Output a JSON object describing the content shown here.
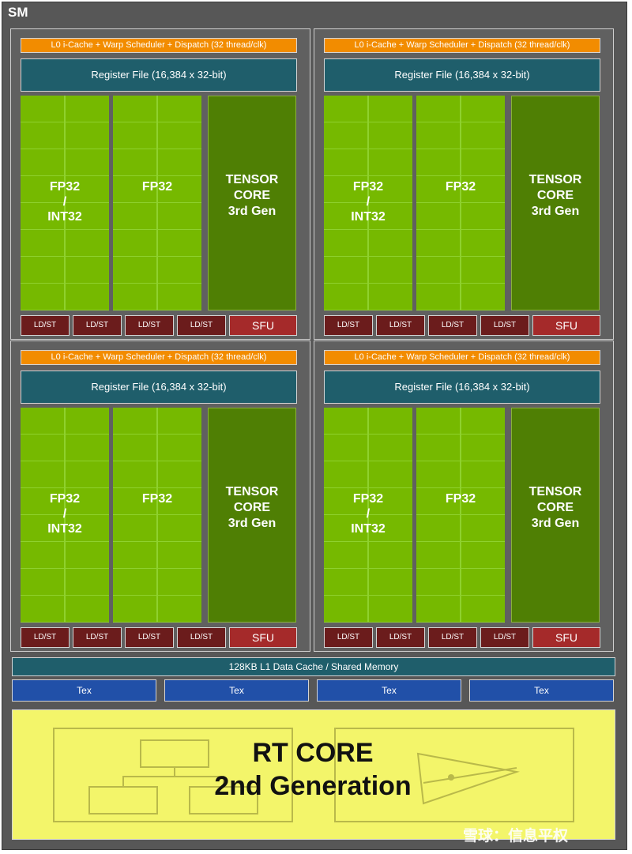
{
  "sm": {
    "title": "SM",
    "processing_blocks": [
      {
        "scheduler": "L0 i-Cache + Warp Scheduler + Dispatch (32 thread/clk)",
        "register_file": "Register File (16,384 x 32-bit)",
        "fp32_int32": [
          "FP32",
          "/",
          "INT32"
        ],
        "fp32": "FP32",
        "tensor": [
          "TENSOR",
          "CORE",
          "3rd Gen"
        ],
        "ldst": [
          "LD/ST",
          "LD/ST",
          "LD/ST",
          "LD/ST"
        ],
        "sfu": "SFU"
      },
      {
        "scheduler": "L0 i-Cache + Warp Scheduler + Dispatch (32 thread/clk)",
        "register_file": "Register File (16,384 x 32-bit)",
        "fp32_int32": [
          "FP32",
          "/",
          "INT32"
        ],
        "fp32": "FP32",
        "tensor": [
          "TENSOR",
          "CORE",
          "3rd Gen"
        ],
        "ldst": [
          "LD/ST",
          "LD/ST",
          "LD/ST",
          "LD/ST"
        ],
        "sfu": "SFU"
      },
      {
        "scheduler": "L0 i-Cache + Warp Scheduler + Dispatch (32 thread/clk)",
        "register_file": "Register File (16,384 x 32-bit)",
        "fp32_int32": [
          "FP32",
          "/",
          "INT32"
        ],
        "fp32": "FP32",
        "tensor": [
          "TENSOR",
          "CORE",
          "3rd Gen"
        ],
        "ldst": [
          "LD/ST",
          "LD/ST",
          "LD/ST",
          "LD/ST"
        ],
        "sfu": "SFU"
      },
      {
        "scheduler": "L0 i-Cache + Warp Scheduler + Dispatch (32 thread/clk)",
        "register_file": "Register File (16,384 x 32-bit)",
        "fp32_int32": [
          "FP32",
          "/",
          "INT32"
        ],
        "fp32": "FP32",
        "tensor": [
          "TENSOR",
          "CORE",
          "3rd Gen"
        ],
        "ldst": [
          "LD/ST",
          "LD/ST",
          "LD/ST",
          "LD/ST"
        ],
        "sfu": "SFU"
      }
    ],
    "l1_cache": "128KB L1 Data Cache / Shared Memory",
    "tex_units": [
      "Tex",
      "Tex",
      "Tex",
      "Tex"
    ],
    "rt_core": {
      "line1": "RT CORE",
      "line2": "2nd Generation"
    }
  },
  "watermark": "雪球：信息平权",
  "colors": {
    "background": "#575757",
    "scheduler": "#f28c00",
    "register_file": "#1f5e6b",
    "cuda_core": "#76b900",
    "tensor_core": "#4f7f04",
    "ldst": "#6b1c1c",
    "sfu": "#a52a2a",
    "tex": "#2150a8",
    "rt_core": "#f3f56a"
  }
}
